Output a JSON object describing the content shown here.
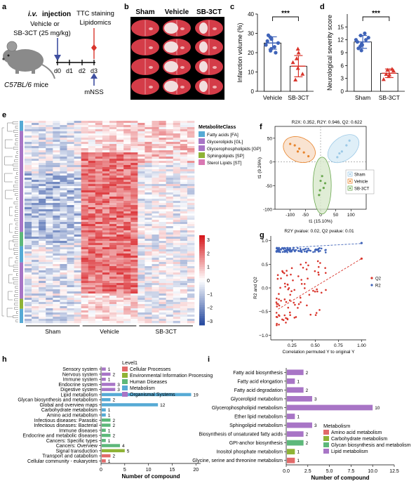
{
  "panel_letters": [
    "a",
    "b",
    "c",
    "d",
    "e",
    "f",
    "g",
    "h",
    "i"
  ],
  "colors": {
    "vehicle": "#e8842c",
    "sb3ct": "#d9342b",
    "sham_dot": "#3f63b8",
    "purple": "#a875c6",
    "blue": "#56aad5",
    "green": "#5db87a",
    "olive": "#8fb336",
    "salmon": "#e26a6a",
    "pink": "#d978b3",
    "mouse": "#8a8a8a",
    "heat_red": "#d7191c",
    "heat_blue": "#2c4ba0",
    "brain": "#d43c48"
  },
  "panel_a": {
    "injection_route": "i.v.",
    "injection_word": "injection",
    "line1": "Vehicle or",
    "line2": "SB-3CT (25 mg/kg)",
    "days": [
      "d0",
      "d1",
      "d2",
      "d3"
    ],
    "staining": "TTC staining",
    "lipidomics": "Lipidomics",
    "mnss": "mNSS",
    "mouse_strain": "C57BL/6",
    "mouse_suffix": "mice"
  },
  "panel_b": {
    "groups": [
      "Sham",
      "Vehicle",
      "SB-3CT"
    ]
  },
  "chart_data": [
    {
      "panel": "c",
      "type": "bar",
      "categories": [
        "Vehicle",
        "SB-3CT"
      ],
      "values": [
        25,
        13
      ],
      "errors": [
        3.2,
        5.5
      ],
      "points": [
        [
          24,
          28,
          21,
          27,
          22,
          25,
          29,
          23,
          26,
          20
        ],
        [
          22,
          17,
          12,
          6,
          15,
          9,
          20
        ]
      ],
      "ylabel": "Infarction volume (%)",
      "ylim": [
        0,
        40
      ],
      "yticks": [
        0,
        10,
        20,
        30,
        40
      ],
      "significance": "***"
    },
    {
      "panel": "d",
      "type": "bar",
      "categories": [
        "Sham",
        "SB-3CT"
      ],
      "values": [
        11.5,
        4.2
      ],
      "errors": [
        1.5,
        1.0
      ],
      "points": [
        [
          12,
          10.5,
          13,
          11,
          9.5,
          12.5,
          10,
          13.5,
          11.5,
          12,
          10.8
        ],
        [
          5,
          3.5,
          4,
          2.8,
          4.8,
          3.9,
          5.2
        ]
      ],
      "ylabel": "Neurological severity score",
      "ylim": [
        0,
        18
      ],
      "yticks": [
        0,
        3,
        6,
        9,
        12,
        15
      ],
      "significance": "***"
    },
    {
      "panel": "e",
      "type": "heatmap",
      "groups": [
        "Sham",
        "Vehicle",
        "SB-3CT"
      ],
      "legend_title": "MetaboliteClass",
      "classes": [
        "Fatty acids [FA]",
        "Glycerolipids [GL]",
        "Glycerophospholipids [GP]",
        "Sphingolipids [SP]",
        "Sterol Lipids [ST]"
      ],
      "colorbar_ticks": [
        "3",
        "2",
        "1",
        "0",
        "−1",
        "−2",
        "−3"
      ]
    },
    {
      "panel": "f",
      "type": "scatter",
      "annotation": "R2X: 0.352, R2Y: 0.946, Q2: 0.622",
      "xlabel": "t1 (15.10%)",
      "ylabel": "t1 (9.26%)",
      "xlim": [
        -150,
        150
      ],
      "ylim": [
        -100,
        75
      ],
      "xticks": [
        -100,
        -50,
        0,
        50,
        100
      ],
      "yticks": [
        -100,
        -50,
        0,
        50
      ],
      "series": [
        {
          "name": "Sham",
          "points": [
            [
              55,
              10
            ],
            [
              70,
              22
            ],
            [
              85,
              35
            ],
            [
              62,
              18
            ],
            [
              95,
              45
            ]
          ]
        },
        {
          "name": "Vehicle",
          "points": [
            [
              -100,
              38
            ],
            [
              -70,
              28
            ],
            [
              -55,
              20
            ],
            [
              -85,
              35
            ],
            [
              -40,
              12
            ],
            [
              -75,
              22
            ]
          ]
        },
        {
          "name": "SB-3CT",
          "points": [
            [
              0,
              -40
            ],
            [
              10,
              -55
            ],
            [
              5,
              -30
            ],
            [
              -5,
              -70
            ],
            [
              15,
              -45
            ],
            [
              -2,
              -60
            ]
          ]
        }
      ]
    },
    {
      "panel": "g",
      "type": "scatter",
      "annotation": "R2Y pvalue: 0.02, Q2 pvalue: 0.01",
      "xlabel": "Correlation permuted Y to original Y",
      "ylabel": "R2 and Q2",
      "xlim": [
        0.02,
        1.05
      ],
      "ylim": [
        -1.1,
        1.1
      ],
      "xticks": [
        0.25,
        0.5,
        0.75,
        1.0
      ],
      "xtick_labels": [
        "0.25",
        "0.50",
        "0.75",
        "1.00"
      ],
      "yticks": [
        -1.0,
        -0.5,
        0.0,
        0.5,
        1.0
      ],
      "ytick_labels": [
        "−1.0",
        "−0.5",
        "0.0",
        "0.5",
        "1.0"
      ],
      "legend": [
        "Q2",
        "R2"
      ],
      "r2_line": [
        [
          0.1,
          0.84
        ],
        [
          1.0,
          0.94
        ]
      ],
      "q2_line": [
        [
          0.1,
          -0.45
        ],
        [
          1.0,
          0.62
        ]
      ]
    },
    {
      "panel": "h",
      "type": "bar",
      "orientation": "horizontal",
      "categories": [
        "Sensory system",
        "Nervous system",
        "Immune system",
        "Endocrine system",
        "Digestive system",
        "Lipid metabolism",
        "Glycan biosynthesis and metabolism",
        "Global and overview maps",
        "Carbohydrate metabolism",
        "Amino acid metabolism",
        "Infectious diseases: Parasitic",
        "Infectious diseases: Bacterial",
        "Immune diseases",
        "Endocrine and metabolic diseases",
        "Cancers: Specific types",
        "Cancers: Overview",
        "Signal transduction",
        "Transport and catabolism",
        "Cellular community - eukaryotes"
      ],
      "values": [
        1,
        2,
        1,
        3,
        3,
        19,
        2,
        12,
        1,
        1,
        2,
        2,
        1,
        2,
        1,
        4,
        5,
        2,
        1
      ],
      "levels": [
        "Organismal Systems",
        "Organismal Systems",
        "Organismal Systems",
        "Organismal Systems",
        "Organismal Systems",
        "Metabolism",
        "Metabolism",
        "Metabolism",
        "Metabolism",
        "Metabolism",
        "Human Diseases",
        "Human Diseases",
        "Human Diseases",
        "Human Diseases",
        "Human Diseases",
        "Human Diseases",
        "Environmental Information Processing",
        "Cellular Processes",
        "Cellular Processes"
      ],
      "xlabel": "Number of compound",
      "xlim": [
        0,
        21
      ],
      "xticks": [
        0,
        5,
        10,
        15,
        20
      ],
      "legend_title": "Level1",
      "legend": [
        "Cellular Processes",
        "Environmental Information Processing",
        "Human Diseases",
        "Metabolism",
        "Organismal Systems"
      ]
    },
    {
      "panel": "i",
      "type": "bar",
      "orientation": "horizontal",
      "categories": [
        "Fatty acid biosynthesis",
        "Fatty acid elongation",
        "Fatty acid degradation",
        "Glycerolipid metabolism",
        "Glycerophospholipid metabolism",
        "Ether lipid metabolism",
        "Sphingolipid metabolism",
        "Biosynthesis of unsaturated fatty acids",
        "GPI-anchor biosynthesis",
        "Inositol phosphate metabolism",
        "Glycine, serine and threonine metabolism"
      ],
      "values": [
        2,
        1,
        2,
        3,
        10,
        1,
        3,
        2,
        2,
        1,
        1
      ],
      "levels": [
        "Lipid metabolism",
        "Lipid metabolism",
        "Lipid metabolism",
        "Lipid metabolism",
        "Lipid metabolism",
        "Lipid metabolism",
        "Lipid metabolism",
        "Lipid metabolism",
        "Glycan biosynthesis and metabolism",
        "Carbohydrate metabolism",
        "Amino acid metabolism"
      ],
      "xlabel": "Number of compound",
      "xlim": [
        0,
        12.5
      ],
      "xticks": [
        0,
        2.5,
        5,
        7.5,
        10,
        12.5
      ],
      "xtick_labels": [
        "0.0",
        "2.5",
        "5.0",
        "7.5",
        "10.0",
        "12.5"
      ],
      "legend_title": "Metabolism",
      "legend": [
        "Amino acid metabolism",
        "Carbohydrate metabolism",
        "Glycan biosynthesis and metabolism",
        "Lipid metabolism"
      ]
    }
  ]
}
